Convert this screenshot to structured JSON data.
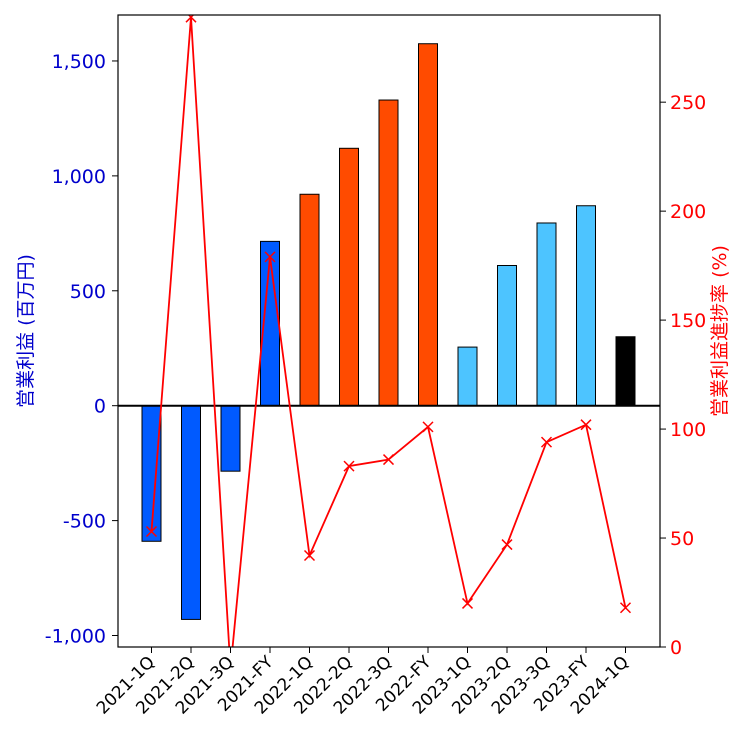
{
  "chart_data": {
    "type": "bar",
    "title": "",
    "categories": [
      "2021-1Q",
      "2021-2Q",
      "2021-3Q",
      "2021-FY",
      "2022-1Q",
      "2022-2Q",
      "2022-3Q",
      "2022-FY",
      "2023-1Q",
      "2023-2Q",
      "2023-3Q",
      "2023-FY",
      "2024-1Q"
    ],
    "bars": {
      "ylabel": "営業利益 (百万円)",
      "ylim": [
        -1050,
        1700
      ],
      "yticks": [
        -1000,
        -500,
        0,
        500,
        1000,
        1500
      ],
      "ytick_labels": [
        "-1,000",
        "-500",
        "0",
        "500",
        "1,000",
        "1,500"
      ],
      "values": [
        -590,
        -930,
        -285,
        715,
        920,
        1120,
        1330,
        1575,
        255,
        610,
        795,
        870,
        300
      ],
      "colors": [
        "#005aff",
        "#005aff",
        "#005aff",
        "#005aff",
        "#ff4b00",
        "#ff4b00",
        "#ff4b00",
        "#ff4b00",
        "#4dc4ff",
        "#4dc4ff",
        "#4dc4ff",
        "#4dc4ff",
        "#000000"
      ]
    },
    "line": {
      "ylabel": "営業利益進捗率 (%)",
      "ylim": [
        0,
        290
      ],
      "yticks": [
        0,
        50,
        100,
        150,
        200,
        250
      ],
      "ytick_labels": [
        "0",
        "50",
        "100",
        "150",
        "200",
        "250"
      ],
      "values": [
        53,
        289,
        -10,
        179,
        42,
        83,
        86,
        101,
        20,
        47,
        94,
        102,
        18
      ],
      "color": "#ff0000",
      "marker": "x"
    },
    "left_axis_color": "#0000cc",
    "right_axis_color": "#ff0000",
    "grid": false,
    "zero_line": true
  }
}
